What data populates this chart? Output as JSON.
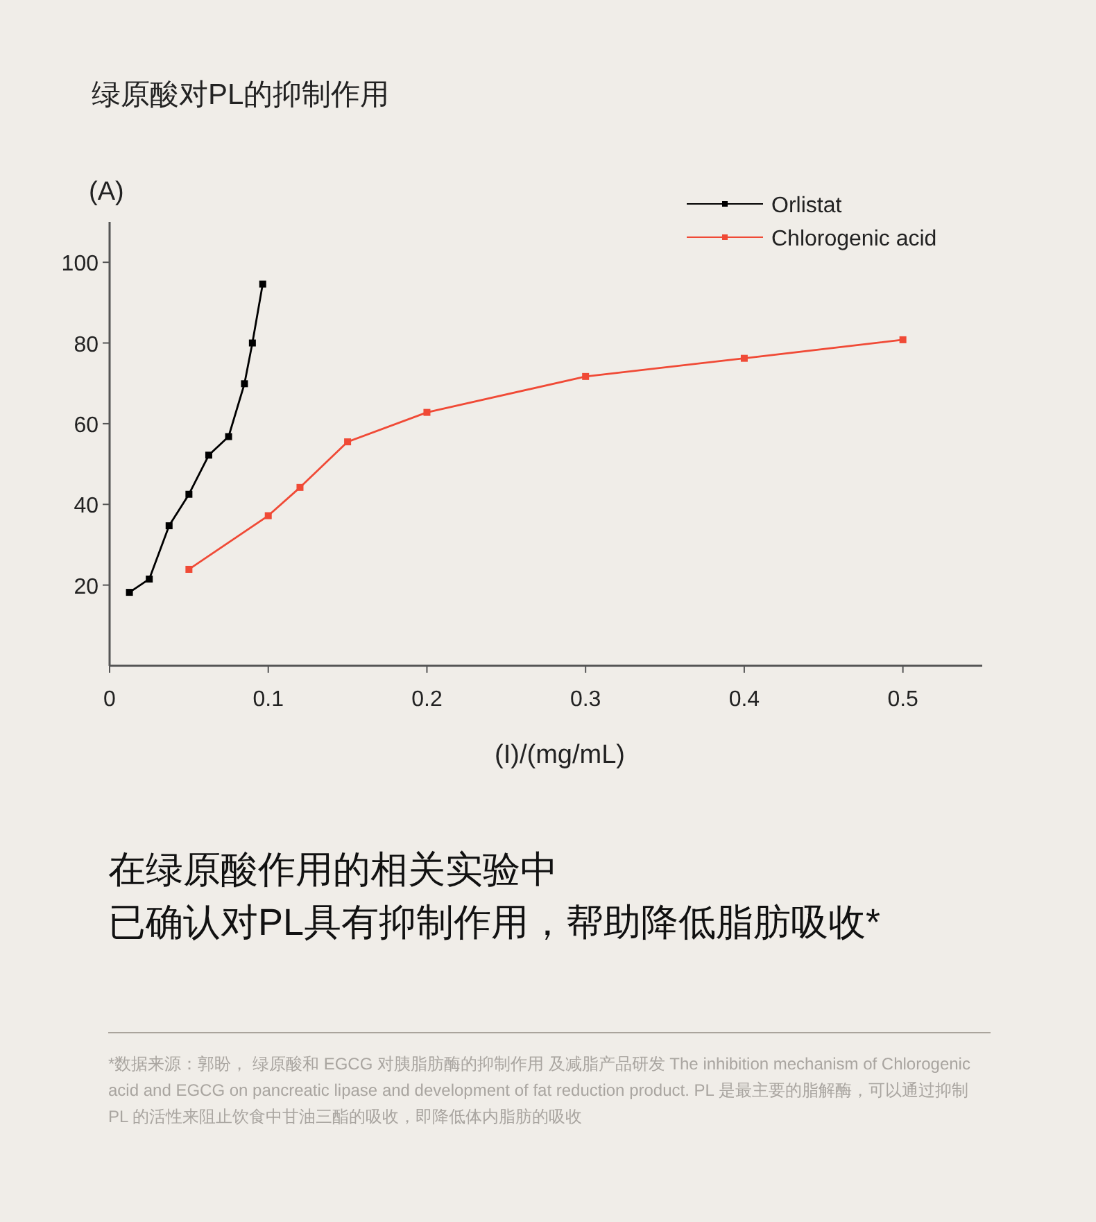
{
  "chart_data": {
    "type": "line",
    "title": "绿原酸对PL的抑制作用",
    "xlabel": "(I)/(mg/mL)",
    "xlim": [
      0,
      0.55
    ],
    "xticks": [
      0,
      0.1,
      0.2,
      0.3,
      0.4,
      0.5
    ],
    "ylim": [
      0,
      110
    ],
    "yticks": [
      20,
      40,
      60,
      80,
      100
    ],
    "marker": "square",
    "legend": "top right",
    "grid": false,
    "series": [
      {
        "name": "Orlistat",
        "color": "#000000",
        "x": [
          0.0125,
          0.025,
          0.0375,
          0.05,
          0.0625,
          0.075,
          0.085,
          0.09,
          0.0965
        ],
        "values": [
          18.2,
          21.5,
          34.7,
          42.5,
          52.2,
          56.8,
          69.9,
          80,
          94.6
        ]
      },
      {
        "name": "Chlorogenic acid",
        "color": "#f04a36",
        "x": [
          0.05,
          0.1,
          0.12,
          0.15,
          0.2,
          0.3,
          0.4,
          0.5
        ],
        "values": [
          23.9,
          37.2,
          44.2,
          55.5,
          62.8,
          71.7,
          76.2,
          80.8
        ]
      }
    ],
    "annotations": [
      "(A)",
      "在绿原酸作用的相关实验中",
      "已确认对PL具有抑制作用，帮助降低脂肪吸收*",
      "*数据来源：郭盼， 绿原酸和 EGCG 对胰脂肪酶的抑制作用 及减脂产品研发 The inhibition mechanism of Chlorogenic acid and EGCG on pancreatic lipase and development of fat reduction product.  PL 是最主要的脂解酶，可以通过抑制 PL 的活性来阻止饮食中甘油三酯的吸收，即降低体内脂肪的吸收"
    ]
  }
}
